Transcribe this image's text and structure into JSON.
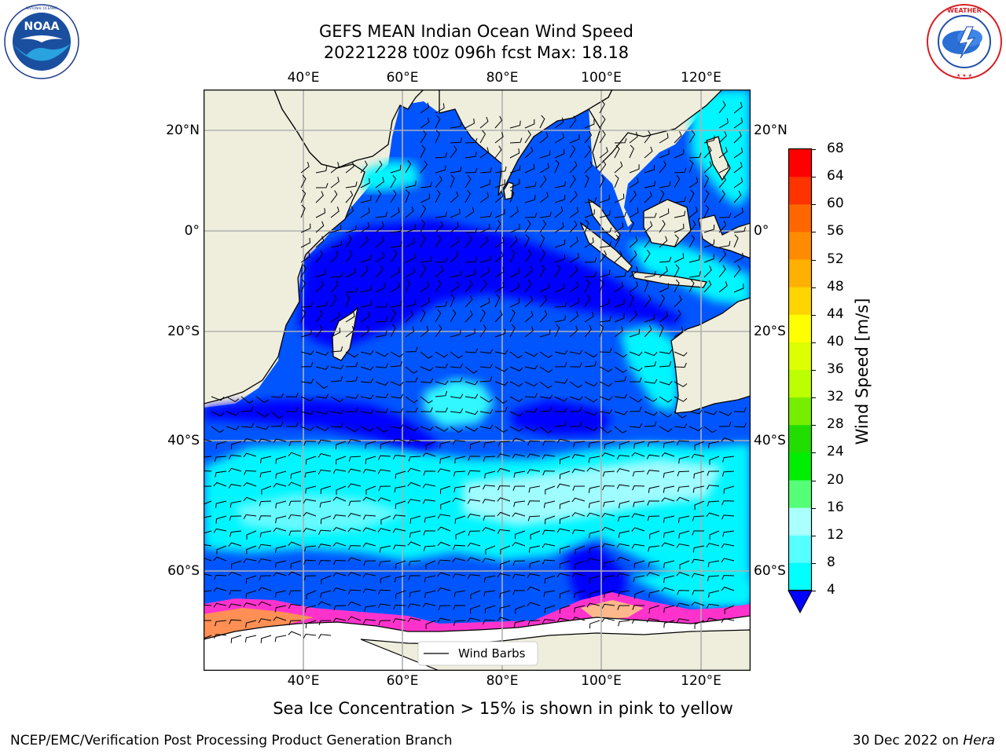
{
  "header": {
    "title": "GEFS MEAN Indian Ocean Wind Speed",
    "subtitle": "20221228 t00z 096h fcst   Max: 18.18"
  },
  "logos": {
    "left": {
      "name": "noaa-logo",
      "text": "NOAA",
      "ring_text": "NATIONAL OCEANIC AND ATMOSPHERIC ADMINISTRATION · U.S. DEPARTMENT OF COMMERCE"
    },
    "right": {
      "name": "nws-logo",
      "ring_text": "NATIONAL WEATHER SERVICE"
    }
  },
  "map": {
    "lon_ticks_top": [
      "40°E",
      "60°E",
      "80°E",
      "100°E",
      "120°E"
    ],
    "lon_ticks_bottom": [
      "40°E",
      "60°E",
      "80°E",
      "100°E",
      "120°E"
    ],
    "lat_ticks_left": [
      "20°N",
      "0°",
      "20°S",
      "40°S",
      "60°S"
    ],
    "lat_ticks_right": [
      "20°N",
      "0°",
      "20°S",
      "40°S",
      "60°S"
    ],
    "legend_label": "Wind Barbs",
    "colors": {
      "land": "#efeedd",
      "ocean_low": "#0055ff",
      "ocean_calm": "#0000ff",
      "ocean_mid": "#00f5ff",
      "ocean_high": "#9ffcff",
      "ice_pink": "#ff33cc",
      "ice_orange": "#ffa040",
      "ice_yellow": "#ffff66"
    }
  },
  "colorbar": {
    "label": "Wind Speed [m/s]",
    "ticks": [
      "68",
      "64",
      "60",
      "56",
      "52",
      "48",
      "44",
      "40",
      "36",
      "32",
      "28",
      "24",
      "20",
      "16",
      "12",
      "8",
      "4"
    ],
    "colors": [
      "#ff0000",
      "#ff3300",
      "#ff6600",
      "#ff8c00",
      "#ffb000",
      "#ffd500",
      "#ffff00",
      "#ddff00",
      "#bbff00",
      "#77ee00",
      "#22dd00",
      "#00ee00",
      "#55ff77",
      "#aaffff",
      "#55ffff",
      "#00ffff",
      "#0080ff"
    ],
    "extend_color": "#0000ff"
  },
  "caption": "Sea Ice Concentration > 15% is shown in pink to yellow",
  "footer": {
    "left": "NCEP/EMC/Verification Post Processing Product Generation Branch",
    "date": "30 Dec 2022 on ",
    "machine": "Hera"
  }
}
